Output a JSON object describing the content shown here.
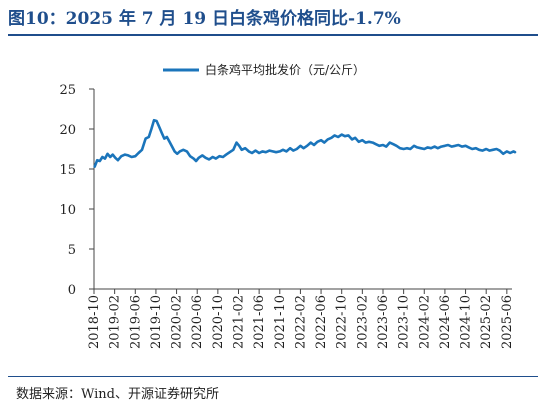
{
  "title": "图10：2025 年 7 月 19 日白条鸡价格同比-1.7%",
  "source": "数据来源：Wind、开源证券研究所",
  "colors": {
    "line": "#1b75bb",
    "title": "#1f4e8c"
  },
  "chart_data": {
    "type": "line",
    "legend": {
      "placement": "top-center"
    },
    "grid": false,
    "ylim": [
      0,
      25
    ],
    "yticks": [
      0,
      5,
      10,
      15,
      20,
      25
    ],
    "xlim": [
      "2018-10",
      "2025-07"
    ],
    "xtick_labels": [
      "2018-10",
      "2019-02",
      "2019-06",
      "2019-10",
      "2020-02",
      "2020-06",
      "2020-10",
      "2021-02",
      "2021-06",
      "2021-10",
      "2022-02",
      "2022-06",
      "2022-10",
      "2023-02",
      "2023-06",
      "2023-10",
      "2024-02",
      "2024-06",
      "2024-10",
      "2025-02",
      "2025-06"
    ],
    "series": [
      {
        "name": "白条鸡平均批发价（元/公斤）",
        "points": [
          [
            "2018-10-05",
            15.3
          ],
          [
            "2018-10-20",
            16.1
          ],
          [
            "2018-11-05",
            16.0
          ],
          [
            "2018-11-20",
            16.5
          ],
          [
            "2018-12-05",
            16.3
          ],
          [
            "2018-12-20",
            16.9
          ],
          [
            "2019-01-05",
            16.5
          ],
          [
            "2019-01-20",
            16.8
          ],
          [
            "2019-02-05",
            16.4
          ],
          [
            "2019-02-20",
            16.1
          ],
          [
            "2019-03-10",
            16.6
          ],
          [
            "2019-04-01",
            16.8
          ],
          [
            "2019-04-20",
            16.7
          ],
          [
            "2019-05-10",
            16.5
          ],
          [
            "2019-06-01",
            16.6
          ],
          [
            "2019-06-20",
            17.0
          ],
          [
            "2019-07-10",
            17.4
          ],
          [
            "2019-08-01",
            18.8
          ],
          [
            "2019-08-20",
            19.0
          ],
          [
            "2019-09-05",
            20.0
          ],
          [
            "2019-09-20",
            21.1
          ],
          [
            "2019-10-05",
            21.0
          ],
          [
            "2019-10-20",
            20.3
          ],
          [
            "2019-11-05",
            19.5
          ],
          [
            "2019-11-20",
            18.8
          ],
          [
            "2019-12-05",
            19.0
          ],
          [
            "2019-12-20",
            18.4
          ],
          [
            "2020-01-05",
            17.8
          ],
          [
            "2020-01-20",
            17.2
          ],
          [
            "2020-02-05",
            16.9
          ],
          [
            "2020-02-20",
            17.2
          ],
          [
            "2020-03-10",
            17.4
          ],
          [
            "2020-04-01",
            17.2
          ],
          [
            "2020-04-20",
            16.6
          ],
          [
            "2020-05-10",
            16.3
          ],
          [
            "2020-05-25",
            16.0
          ],
          [
            "2020-06-10",
            16.4
          ],
          [
            "2020-07-01",
            16.7
          ],
          [
            "2020-07-20",
            16.4
          ],
          [
            "2020-08-10",
            16.2
          ],
          [
            "2020-09-01",
            16.5
          ],
          [
            "2020-09-20",
            16.3
          ],
          [
            "2020-10-10",
            16.6
          ],
          [
            "2020-11-01",
            16.5
          ],
          [
            "2020-11-20",
            16.8
          ],
          [
            "2020-12-10",
            17.1
          ],
          [
            "2021-01-01",
            17.4
          ],
          [
            "2021-01-20",
            18.3
          ],
          [
            "2021-02-05",
            17.9
          ],
          [
            "2021-02-20",
            17.4
          ],
          [
            "2021-03-10",
            17.6
          ],
          [
            "2021-04-01",
            17.2
          ],
          [
            "2021-04-20",
            17.0
          ],
          [
            "2021-05-10",
            17.3
          ],
          [
            "2021-06-01",
            17.0
          ],
          [
            "2021-06-20",
            17.2
          ],
          [
            "2021-07-10",
            17.1
          ],
          [
            "2021-08-01",
            17.3
          ],
          [
            "2021-08-20",
            17.2
          ],
          [
            "2021-09-10",
            17.1
          ],
          [
            "2021-10-01",
            17.2
          ],
          [
            "2021-10-20",
            17.4
          ],
          [
            "2021-11-10",
            17.2
          ],
          [
            "2021-12-01",
            17.6
          ],
          [
            "2021-12-20",
            17.3
          ],
          [
            "2022-01-10",
            17.5
          ],
          [
            "2022-02-01",
            17.9
          ],
          [
            "2022-02-20",
            17.6
          ],
          [
            "2022-03-10",
            17.9
          ],
          [
            "2022-04-01",
            18.3
          ],
          [
            "2022-04-20",
            18.0
          ],
          [
            "2022-05-10",
            18.4
          ],
          [
            "2022-06-01",
            18.6
          ],
          [
            "2022-06-20",
            18.3
          ],
          [
            "2022-07-10",
            18.7
          ],
          [
            "2022-08-01",
            18.9
          ],
          [
            "2022-08-20",
            19.2
          ],
          [
            "2022-09-10",
            19.0
          ],
          [
            "2022-10-01",
            19.3
          ],
          [
            "2022-10-20",
            19.1
          ],
          [
            "2022-11-10",
            19.2
          ],
          [
            "2022-12-01",
            18.7
          ],
          [
            "2022-12-20",
            18.9
          ],
          [
            "2023-01-10",
            18.4
          ],
          [
            "2023-02-01",
            18.6
          ],
          [
            "2023-02-20",
            18.3
          ],
          [
            "2023-03-10",
            18.4
          ],
          [
            "2023-04-01",
            18.3
          ],
          [
            "2023-04-20",
            18.1
          ],
          [
            "2023-05-10",
            17.9
          ],
          [
            "2023-06-01",
            18.0
          ],
          [
            "2023-06-20",
            17.8
          ],
          [
            "2023-07-10",
            18.3
          ],
          [
            "2023-08-01",
            18.1
          ],
          [
            "2023-08-20",
            17.9
          ],
          [
            "2023-09-10",
            17.6
          ],
          [
            "2023-10-01",
            17.5
          ],
          [
            "2023-10-20",
            17.6
          ],
          [
            "2023-11-10",
            17.5
          ],
          [
            "2023-12-01",
            17.9
          ],
          [
            "2023-12-20",
            17.7
          ],
          [
            "2024-01-10",
            17.6
          ],
          [
            "2024-02-01",
            17.5
          ],
          [
            "2024-02-20",
            17.7
          ],
          [
            "2024-03-10",
            17.6
          ],
          [
            "2024-04-01",
            17.8
          ],
          [
            "2024-04-20",
            17.6
          ],
          [
            "2024-05-10",
            17.8
          ],
          [
            "2024-06-01",
            17.9
          ],
          [
            "2024-06-20",
            18.0
          ],
          [
            "2024-07-10",
            17.8
          ],
          [
            "2024-08-01",
            17.9
          ],
          [
            "2024-08-20",
            18.0
          ],
          [
            "2024-09-10",
            17.8
          ],
          [
            "2024-10-01",
            17.9
          ],
          [
            "2024-10-20",
            17.7
          ],
          [
            "2024-11-10",
            17.5
          ],
          [
            "2024-12-01",
            17.6
          ],
          [
            "2024-12-20",
            17.4
          ],
          [
            "2025-01-10",
            17.3
          ],
          [
            "2025-02-01",
            17.5
          ],
          [
            "2025-02-20",
            17.3
          ],
          [
            "2025-03-10",
            17.4
          ],
          [
            "2025-04-01",
            17.5
          ],
          [
            "2025-04-20",
            17.3
          ],
          [
            "2025-05-10",
            16.9
          ],
          [
            "2025-06-01",
            17.2
          ],
          [
            "2025-06-20",
            17.0
          ],
          [
            "2025-07-10",
            17.2
          ],
          [
            "2025-07-19",
            17.1
          ]
        ]
      }
    ]
  }
}
